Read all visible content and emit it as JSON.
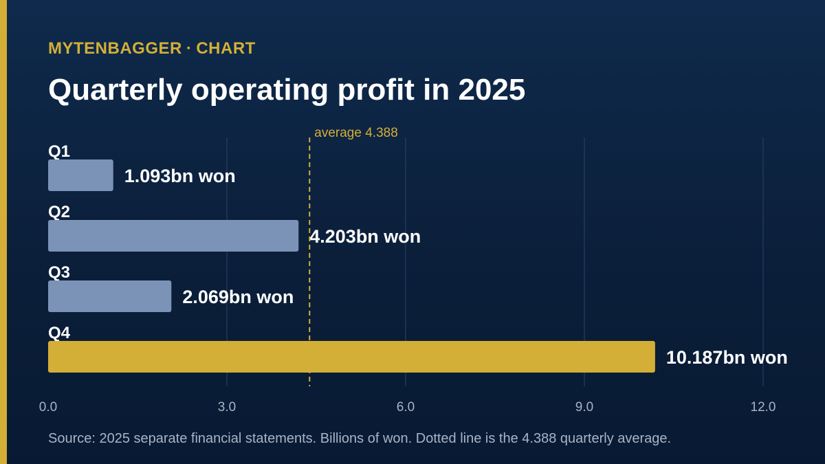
{
  "header": {
    "brand": "MYTENBAGGER",
    "separator": "·",
    "section": "CHART",
    "title": "Quarterly operating profit in 2025"
  },
  "footnote": "Source: 2025 separate financial statements. Billions of won. Dotted line is the 4.388 quarterly average.",
  "colors": {
    "background": "#0b1f3a",
    "accent": "#d4af37",
    "bar_default": "#7b93b7",
    "bar_highlight": "#d4af37",
    "text": "#ffffff",
    "muted": "#a9b4c6"
  },
  "chart_data": {
    "type": "bar",
    "orientation": "horizontal",
    "categories": [
      "Q1",
      "Q2",
      "Q3",
      "Q4"
    ],
    "values": [
      1.093,
      4.203,
      2.069,
      10.187
    ],
    "value_labels": [
      "1.093bn won",
      "4.203bn won",
      "2.069bn won",
      "10.187bn won"
    ],
    "highlight_index": 3,
    "xlim": [
      0,
      12
    ],
    "x_ticks": [
      0,
      3,
      6,
      9,
      12
    ],
    "x_tick_labels": [
      "0.0",
      "3.0",
      "6.0",
      "9.0",
      "12.0"
    ],
    "grid": true,
    "reference_line": {
      "value": 4.388,
      "label": "average 4.388",
      "style": "dashed"
    }
  }
}
